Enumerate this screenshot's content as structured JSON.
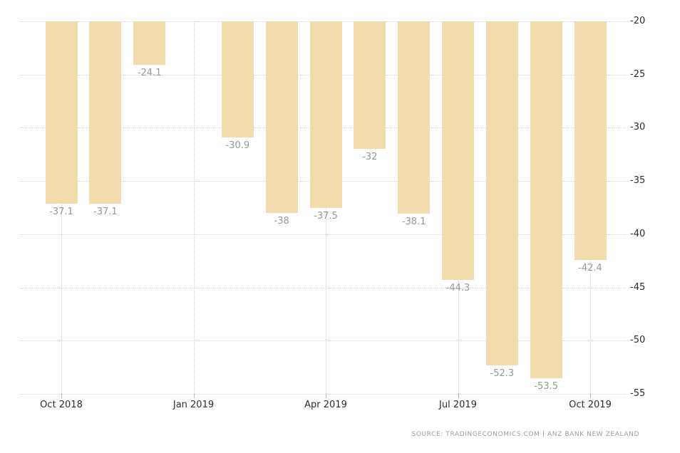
{
  "chart_data": {
    "type": "bar",
    "title": "",
    "xlabel": "",
    "ylabel": "",
    "categories": [
      "Oct 2018",
      "Nov 2018",
      "Dec 2018",
      "Feb 2019",
      "Mar 2019",
      "Apr 2019",
      "May 2019",
      "Jun 2019",
      "Jul 2019",
      "Aug 2019",
      "Sep 2019",
      "Oct 2019"
    ],
    "values": [
      -37.1,
      -37.1,
      -24.1,
      -30.9,
      -38,
      -37.5,
      -32,
      -38.1,
      -44.3,
      -52.3,
      -53.5,
      -42.4
    ],
    "value_labels": [
      "-37.1",
      "-37.1",
      "-24.1",
      "-30.9",
      "-38",
      "-37.5",
      "-32",
      "-38.1",
      "-44.3",
      "-52.3",
      "-53.5",
      "-42.4"
    ],
    "month_offsets": [
      0,
      1,
      2,
      4,
      5,
      6,
      7,
      8,
      9,
      10,
      11,
      12
    ],
    "baseline_value": -20,
    "ylim": [
      -55,
      -20
    ],
    "y_ticks": [
      "-20",
      "-25",
      "-30",
      "-35",
      "-40",
      "-45",
      "-50",
      "-55"
    ],
    "y_tick_values": [
      -20,
      -25,
      -30,
      -35,
      -40,
      -45,
      -50,
      -55
    ],
    "x_ticks": [
      "Oct 2018",
      "Jan 2019",
      "Apr 2019",
      "Jul 2019",
      "Oct 2019"
    ],
    "x_tick_month_offsets": [
      0,
      3,
      6,
      9,
      12
    ],
    "grid": "dotted",
    "legend_position": "none",
    "bar_color": "#f2dbac",
    "grid_color": "#cfcfcf",
    "axis_label_color": "#2d2d2d",
    "value_label_color": "#979797"
  },
  "source": {
    "text": "SOURCE: TRADINGECONOMICS.COM  |  ANZ BANK NEW ZEALAND",
    "color": "#9b9b9b"
  }
}
